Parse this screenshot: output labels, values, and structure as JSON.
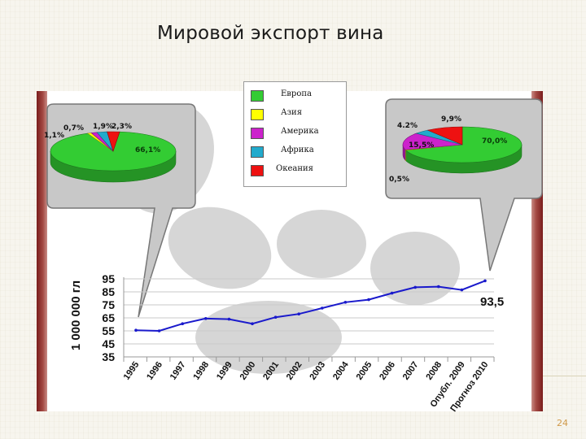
{
  "slide": {
    "title": "Мировой экспорт вина",
    "page_number": "24"
  },
  "legend": [
    {
      "label": "Европа",
      "color": "#33cc33"
    },
    {
      "label": "Азия",
      "color": "#ffff00"
    },
    {
      "label": "Америка",
      "color": "#cc22cc"
    },
    {
      "label": "Африка",
      "color": "#22aacc"
    },
    {
      "label": "Океания",
      "color": "#ee1111"
    }
  ],
  "chart_data": [
    {
      "type": "pie",
      "slices": [
        {
          "region": "Европа",
          "value": 66.1,
          "label": "66,1%",
          "color": "#33cc33"
        },
        {
          "region": "Азия",
          "value": 0.7,
          "label": "0,7%",
          "color": "#ffff00"
        },
        {
          "region": "Америка",
          "value": 1.1,
          "label": "1,1%",
          "color": "#cc22cc"
        },
        {
          "region": "Африка",
          "value": 1.9,
          "label": "1,9%",
          "color": "#22aacc"
        },
        {
          "region": "Океания",
          "value": 2.3,
          "label": "2,3%",
          "color": "#ee1111"
        }
      ]
    },
    {
      "type": "pie",
      "slices": [
        {
          "region": "Европа",
          "value": 70.0,
          "label": "70,0%",
          "color": "#33cc33"
        },
        {
          "region": "Азия",
          "value": 0.5,
          "label": "0,5%",
          "color": "#ffff00"
        },
        {
          "region": "Америка",
          "value": 15.5,
          "label": "15,5%",
          "color": "#cc22cc"
        },
        {
          "region": "Африка",
          "value": 4.2,
          "label": "4.2%",
          "color": "#22aacc"
        },
        {
          "region": "Океания",
          "value": 9.9,
          "label": "9,9%",
          "color": "#ee1111"
        }
      ]
    },
    {
      "type": "line",
      "ylabel": "1 000 000 гл",
      "ylim": [
        35,
        95
      ],
      "yticks": [
        35,
        45,
        55,
        65,
        75,
        85,
        95
      ],
      "x": [
        "1995",
        "1996",
        "1997",
        "1998",
        "1999",
        "2000",
        "2001",
        "2002",
        "2003",
        "2004",
        "2005",
        "2006",
        "2007",
        "2008",
        "Опубл. 2009",
        "Прогноз 2010"
      ],
      "series": [
        {
          "values": [
            55.5,
            55.0,
            60.5,
            64.5,
            64.0,
            60.5,
            65.5,
            68.0,
            72.5,
            77.0,
            79.0,
            84.0,
            88.5,
            89.0,
            86.5,
            93.5
          ],
          "color": "#1a1acc"
        }
      ],
      "annotation": "93,5",
      "grid": true
    }
  ]
}
